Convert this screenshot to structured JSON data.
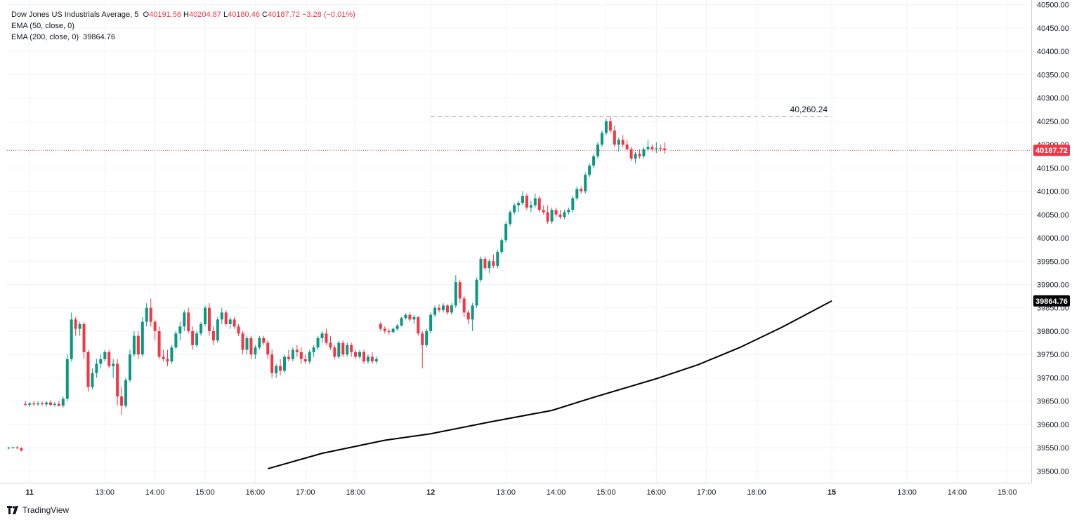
{
  "legend": {
    "title": "Dow Jones US Industrials Average, 5",
    "o_label": "O",
    "o_value": "40191.56",
    "h_label": "H",
    "h_value": "40204.87",
    "l_label": "L",
    "l_value": "40180.46",
    "c_label": "C",
    "c_value": "40187.72",
    "change": "−3.28 (−0.01%)",
    "ema50": "EMA (50, close, 0)",
    "ema200": "EMA (200, close, 0)",
    "ema200_value": "39864.76"
  },
  "brand": "TradingView",
  "colors": {
    "up": "#089981",
    "down": "#f23645",
    "ema": "#000000",
    "grid": "#f0f3fa"
  },
  "chart_data": {
    "type": "candlestick",
    "ylim": [
      39475,
      40510
    ],
    "y_ticks": [
      39500,
      39550,
      39600,
      39650,
      39700,
      39750,
      39800,
      39850,
      39900,
      39950,
      40000,
      40050,
      40100,
      40150,
      40200,
      40250,
      40300,
      40350,
      40400,
      40450,
      40500
    ],
    "x_ticks": [
      {
        "i": 5,
        "label": "11"
      },
      {
        "i": 23,
        "label": "13:00"
      },
      {
        "i": 35,
        "label": "14:00"
      },
      {
        "i": 47,
        "label": "15:00"
      },
      {
        "i": 59,
        "label": "16:00"
      },
      {
        "i": 71,
        "label": "17:00"
      },
      {
        "i": 83,
        "label": "18:00"
      },
      {
        "i": 101,
        "label": "12"
      },
      {
        "i": 119,
        "label": "13:00"
      },
      {
        "i": 131,
        "label": "14:00"
      },
      {
        "i": 143,
        "label": "15:00"
      },
      {
        "i": 155,
        "label": "16:00"
      },
      {
        "i": 167,
        "label": "17:00"
      },
      {
        "i": 179,
        "label": "18:00"
      },
      {
        "i": 197,
        "label": "15"
      },
      {
        "i": 215,
        "label": "13:00"
      },
      {
        "i": 227,
        "label": "14:00"
      },
      {
        "i": 239,
        "label": "15:00"
      }
    ],
    "candles": [
      [
        39550,
        39552,
        39547,
        39550
      ],
      [
        39550,
        39552,
        39548,
        39551
      ],
      [
        39551,
        39553,
        39547,
        39549
      ],
      [
        39549,
        39551,
        39542,
        39544
      ],
      [
        39644,
        39650,
        39640,
        39642
      ],
      [
        39642,
        39648,
        39638,
        39645
      ],
      [
        39645,
        39650,
        39640,
        39643
      ],
      [
        39643,
        39650,
        39640,
        39645
      ],
      [
        39645,
        39649,
        39641,
        39643
      ],
      [
        39643,
        39650,
        39638,
        39647
      ],
      [
        39647,
        39652,
        39640,
        39642
      ],
      [
        39642,
        39648,
        39638,
        39644
      ],
      [
        39644,
        39650,
        39638,
        39640
      ],
      [
        39640,
        39660,
        39636,
        39655
      ],
      [
        39655,
        39750,
        39650,
        39740
      ],
      [
        39740,
        39840,
        39735,
        39825
      ],
      [
        39825,
        39830,
        39790,
        39805
      ],
      [
        39805,
        39820,
        39790,
        39815
      ],
      [
        39815,
        39820,
        39740,
        39755
      ],
      [
        39755,
        39760,
        39670,
        39680
      ],
      [
        39680,
        39720,
        39675,
        39710
      ],
      [
        39710,
        39740,
        39700,
        39730
      ],
      [
        39730,
        39750,
        39720,
        39740
      ],
      [
        39740,
        39760,
        39735,
        39755
      ],
      [
        39755,
        39760,
        39720,
        39725
      ],
      [
        39725,
        39740,
        39700,
        39730
      ],
      [
        39730,
        39740,
        39640,
        39660
      ],
      [
        39660,
        39680,
        39620,
        39640
      ],
      [
        39640,
        39700,
        39635,
        39695
      ],
      [
        39695,
        39760,
        39690,
        39750
      ],
      [
        39750,
        39800,
        39745,
        39790
      ],
      [
        39790,
        39800,
        39740,
        39750
      ],
      [
        39750,
        39830,
        39745,
        39820
      ],
      [
        39820,
        39860,
        39810,
        39850
      ],
      [
        39850,
        39870,
        39810,
        39820
      ],
      [
        39820,
        39825,
        39780,
        39800
      ],
      [
        39800,
        39810,
        39740,
        39745
      ],
      [
        39745,
        39760,
        39735,
        39740
      ],
      [
        39740,
        39760,
        39725,
        39735
      ],
      [
        39735,
        39770,
        39730,
        39765
      ],
      [
        39765,
        39800,
        39760,
        39795
      ],
      [
        39795,
        39820,
        39780,
        39810
      ],
      [
        39810,
        39845,
        39800,
        39840
      ],
      [
        39840,
        39850,
        39795,
        39800
      ],
      [
        39800,
        39810,
        39760,
        39770
      ],
      [
        39770,
        39800,
        39765,
        39795
      ],
      [
        39795,
        39820,
        39790,
        39815
      ],
      [
        39815,
        39855,
        39810,
        39850
      ],
      [
        39850,
        39860,
        39790,
        39800
      ],
      [
        39800,
        39810,
        39770,
        39780
      ],
      [
        39780,
        39830,
        39775,
        39825
      ],
      [
        39825,
        39850,
        39815,
        39840
      ],
      [
        39840,
        39845,
        39810,
        39815
      ],
      [
        39815,
        39830,
        39805,
        39825
      ],
      [
        39825,
        39830,
        39805,
        39810
      ],
      [
        39810,
        39815,
        39790,
        39795
      ],
      [
        39795,
        39800,
        39750,
        39760
      ],
      [
        39760,
        39790,
        39750,
        39785
      ],
      [
        39785,
        39790,
        39740,
        39750
      ],
      [
        39750,
        39770,
        39740,
        39765
      ],
      [
        39765,
        39790,
        39760,
        39785
      ],
      [
        39785,
        39790,
        39770,
        39775
      ],
      [
        39775,
        39780,
        39740,
        39750
      ],
      [
        39750,
        39760,
        39700,
        39710
      ],
      [
        39710,
        39730,
        39700,
        39725
      ],
      [
        39725,
        39740,
        39705,
        39715
      ],
      [
        39715,
        39750,
        39710,
        39745
      ],
      [
        39745,
        39760,
        39735,
        39740
      ],
      [
        39740,
        39765,
        39735,
        39760
      ],
      [
        39760,
        39770,
        39745,
        39755
      ],
      [
        39755,
        39765,
        39730,
        39740
      ],
      [
        39740,
        39750,
        39730,
        39735
      ],
      [
        39735,
        39760,
        39730,
        39755
      ],
      [
        39755,
        39770,
        39745,
        39765
      ],
      [
        39765,
        39790,
        39760,
        39785
      ],
      [
        39785,
        39800,
        39775,
        39795
      ],
      [
        39795,
        39805,
        39770,
        39775
      ],
      [
        39775,
        39790,
        39760,
        39765
      ],
      [
        39765,
        39770,
        39740,
        39745
      ],
      [
        39745,
        39780,
        39740,
        39775
      ],
      [
        39775,
        39780,
        39745,
        39750
      ],
      [
        39750,
        39775,
        39745,
        39770
      ],
      [
        39770,
        39775,
        39745,
        39755
      ],
      [
        39755,
        39760,
        39740,
        39745
      ],
      [
        39745,
        39760,
        39740,
        39755
      ],
      [
        39755,
        39760,
        39730,
        39735
      ],
      [
        39735,
        39750,
        39730,
        39745
      ],
      [
        39745,
        39755,
        39730,
        39735
      ],
      [
        39735,
        39745,
        39730,
        39740
      ],
      [
        39815,
        39820,
        39800,
        39805
      ],
      [
        39805,
        39810,
        39795,
        39800
      ],
      [
        39800,
        39805,
        39792,
        39798
      ],
      [
        39798,
        39808,
        39795,
        39805
      ],
      [
        39805,
        39815,
        39800,
        39812
      ],
      [
        39812,
        39830,
        39810,
        39828
      ],
      [
        39828,
        39838,
        39825,
        39835
      ],
      [
        39835,
        39840,
        39820,
        39825
      ],
      [
        39825,
        39835,
        39815,
        39830
      ],
      [
        39830,
        39832,
        39790,
        39795
      ],
      [
        39795,
        39800,
        39720,
        39770
      ],
      [
        39770,
        39805,
        39765,
        39800
      ],
      [
        39800,
        39840,
        39795,
        39835
      ],
      [
        39835,
        39855,
        39830,
        39850
      ],
      [
        39850,
        39858,
        39840,
        39845
      ],
      [
        39845,
        39860,
        39840,
        39855
      ],
      [
        39855,
        39858,
        39835,
        39840
      ],
      [
        39840,
        39860,
        39835,
        39855
      ],
      [
        39855,
        39920,
        39850,
        39905
      ],
      [
        39905,
        39910,
        39860,
        39870
      ],
      [
        39870,
        39875,
        39830,
        39840
      ],
      [
        39840,
        39845,
        39815,
        39825
      ],
      [
        39825,
        39860,
        39800,
        39855
      ],
      [
        39855,
        39915,
        39850,
        39910
      ],
      [
        39910,
        39960,
        39905,
        39955
      ],
      [
        39955,
        39960,
        39930,
        39935
      ],
      [
        39935,
        39955,
        39925,
        39950
      ],
      [
        39950,
        39965,
        39935,
        39940
      ],
      [
        39940,
        39975,
        39935,
        39970
      ],
      [
        39970,
        40000,
        39965,
        39995
      ],
      [
        39995,
        40035,
        39990,
        40030
      ],
      [
        40030,
        40060,
        40025,
        40055
      ],
      [
        40055,
        40075,
        40050,
        40070
      ],
      [
        40070,
        40080,
        40055,
        40075
      ],
      [
        40075,
        40100,
        40070,
        40090
      ],
      [
        40090,
        40095,
        40060,
        40065
      ],
      [
        40065,
        40080,
        40055,
        40070
      ],
      [
        40070,
        40095,
        40065,
        40085
      ],
      [
        40085,
        40090,
        40055,
        40060
      ],
      [
        40060,
        40070,
        40050,
        40055
      ],
      [
        40055,
        40070,
        40030,
        40035
      ],
      [
        40035,
        40065,
        40030,
        40060
      ],
      [
        40060,
        40065,
        40045,
        40050
      ],
      [
        40050,
        40060,
        40040,
        40045
      ],
      [
        40045,
        40060,
        40040,
        40055
      ],
      [
        40055,
        40065,
        40050,
        40060
      ],
      [
        40060,
        40090,
        40055,
        40085
      ],
      [
        40085,
        40110,
        40080,
        40105
      ],
      [
        40105,
        40110,
        40095,
        40100
      ],
      [
        40100,
        40140,
        40095,
        40135
      ],
      [
        40135,
        40160,
        40130,
        40155
      ],
      [
        40155,
        40180,
        40150,
        40175
      ],
      [
        40175,
        40205,
        40170,
        40200
      ],
      [
        40200,
        40230,
        40195,
        40225
      ],
      [
        40225,
        40255,
        40220,
        40250
      ],
      [
        40250,
        40260,
        40225,
        40230
      ],
      [
        40230,
        40240,
        40195,
        40200
      ],
      [
        40200,
        40215,
        40185,
        40210
      ],
      [
        40210,
        40220,
        40195,
        40200
      ],
      [
        40200,
        40210,
        40185,
        40190
      ],
      [
        40190,
        40195,
        40165,
        40170
      ],
      [
        40170,
        40185,
        40160,
        40180
      ],
      [
        40180,
        40190,
        40170,
        40175
      ],
      [
        40175,
        40195,
        40170,
        40190
      ],
      [
        40190,
        40210,
        40185,
        40195
      ],
      [
        40195,
        40200,
        40185,
        40190
      ],
      [
        40190,
        40205,
        40182,
        40192
      ],
      [
        40192,
        40200,
        40185,
        40190
      ],
      [
        40191.56,
        40204.87,
        40180.46,
        40187.72
      ]
    ],
    "ema200": {
      "x": [
        62,
        75,
        90,
        101,
        115,
        130,
        140,
        155,
        165,
        175,
        185,
        197
      ],
      "y": [
        39505,
        39538,
        39566,
        39580,
        39605,
        39630,
        39658,
        39698,
        39728,
        39765,
        39808,
        39864.76
      ]
    },
    "reference_line": {
      "value": 40260.24,
      "label": "40,260.24",
      "from_i": 101,
      "to_i": 197
    },
    "current_price": {
      "value": 40187.72,
      "label": "40187.72"
    },
    "ema_label": {
      "value": 39864.76,
      "label": "39864.76"
    }
  }
}
